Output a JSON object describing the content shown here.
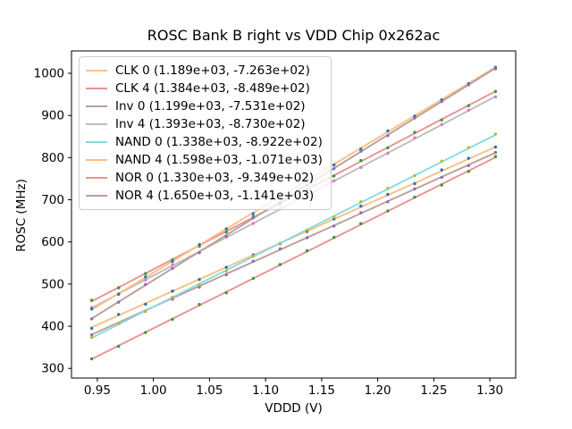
{
  "figure": {
    "background": "#ffffff"
  },
  "chart_data": {
    "type": "scatter",
    "title": "ROSC Bank B right vs VDD Chip 0x262ac",
    "xlabel": "VDDD (V)",
    "ylabel": "ROSC (MHz)",
    "xlim": [
      0.927,
      1.323
    ],
    "ylim": [
      277,
      1053
    ],
    "grid": false,
    "legend_position": "upper-left",
    "x_tick_labels": [
      "0.95",
      "1.00",
      "1.05",
      "1.10",
      "1.15",
      "1.20",
      "1.25",
      "1.30"
    ],
    "x_tick_values": [
      0.95,
      1.0,
      1.05,
      1.1,
      1.15,
      1.2,
      1.25,
      1.3
    ],
    "y_tick_labels": [
      "300",
      "400",
      "500",
      "600",
      "700",
      "800",
      "900",
      "1000"
    ],
    "y_tick_values": [
      300,
      400,
      500,
      600,
      700,
      800,
      900,
      1000
    ],
    "x_points": [
      0.945,
      0.969,
      0.993,
      1.017,
      1.041,
      1.065,
      1.089,
      1.113,
      1.137,
      1.161,
      1.185,
      1.209,
      1.233,
      1.257,
      1.281,
      1.305
    ],
    "series_note": "each series is a linear fit: ROSC = slope * VDDD + intercept; legend shows (slope, intercept)",
    "series": [
      {
        "name": "CLK 0",
        "label": "CLK 0 (1.189e+03, -7.263e+02)",
        "slope": 1189.0,
        "intercept": -726.3,
        "line_color": "#fcbe85",
        "marker_color": "#1f77b4"
      },
      {
        "name": "CLK 4",
        "label": "CLK 4 (1.384e+03, -8.489e+02)",
        "slope": 1384.0,
        "intercept": -848.9,
        "line_color": "#ea9192",
        "marker_color": "#2ca02c"
      },
      {
        "name": "Inv 0",
        "label": "Inv 0 (1.199e+03, -7.531e+02)",
        "slope": 1199.0,
        "intercept": -753.1,
        "line_color": "#bb9e97",
        "marker_color": "#9467bd"
      },
      {
        "name": "Inv 4",
        "label": "Inv 4 (1.393e+03, -8.730e+02)",
        "slope": 1393.0,
        "intercept": -873.0,
        "line_color": "#bdbdbd",
        "marker_color": "#e377c2"
      },
      {
        "name": "NAND 0",
        "label": "NAND 0 (1.338e+03, -8.922e+02)",
        "slope": 1338.0,
        "intercept": -892.2,
        "line_color": "#87dce2",
        "marker_color": "#bcbd22"
      },
      {
        "name": "NAND 4",
        "label": "NAND 4 (1.598e+03, -1.071e+03)",
        "slope": 1598.0,
        "intercept": -1071.0,
        "line_color": "#fcbe85",
        "marker_color": "#1f77b4"
      },
      {
        "name": "NOR 0",
        "label": "NOR 0 (1.330e+03, -9.349e+02)",
        "slope": 1330.0,
        "intercept": -934.9,
        "line_color": "#ea9192",
        "marker_color": "#2ca02c"
      },
      {
        "name": "NOR 4",
        "label": "NOR 4 (1.650e+03, -1.141e+03)",
        "slope": 1650.0,
        "intercept": -1141.0,
        "line_color": "#bb9e97",
        "marker_color": "#9467bd"
      }
    ]
  }
}
